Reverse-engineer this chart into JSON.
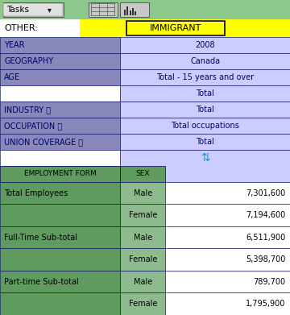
{
  "toolbar_bg": "#8DC88D",
  "immigrant_label": "IMMIGRANT",
  "other_label": "OTHER:",
  "yellow_bg": "#FFFF00",
  "header_rows": [
    {
      "label": "YEAR",
      "value": "2008"
    },
    {
      "label": "GEOGRAPHY",
      "value": "Canada"
    },
    {
      "label": "AGE",
      "value": "Total - 15 years and over"
    },
    {
      "label": "",
      "value": "Total"
    },
    {
      "label": "INDUSTRY ⓘ",
      "value": "Total"
    },
    {
      "label": "OCCUPATION ⓘ",
      "value": "Total occupations"
    },
    {
      "label": "UNION COVERAGE ⓘ",
      "value": "Total"
    }
  ],
  "col_headers": [
    "EMPLOYMENT FORM",
    "SEX"
  ],
  "data_rows": [
    {
      "employment": "Total Employees",
      "sex": "Male",
      "value": "7,301,600"
    },
    {
      "employment": "",
      "sex": "Female",
      "value": "7,194,600"
    },
    {
      "employment": "Full-Time Sub-total",
      "sex": "Male",
      "value": "6,511,900"
    },
    {
      "employment": "",
      "sex": "Female",
      "value": "5,398,700"
    },
    {
      "employment": "Part-time Sub-total",
      "sex": "Male",
      "value": "789,700"
    },
    {
      "employment": "",
      "sex": "Female",
      "value": "1,795,900"
    }
  ],
  "header_left_bg": "#8888BB",
  "header_right_bg": "#CCCCFF",
  "col_header_bg": "#5F9B5F",
  "data_left_bg": "#5F9B5F",
  "data_mid_bg": "#8DBB8D",
  "data_right_bg": "#FFFFFF",
  "border_color": "#000066",
  "text_color_dark": "#000066",
  "text_color_black": "#000000",
  "lw": 0.415,
  "mw": 0.155,
  "rw": 0.43
}
